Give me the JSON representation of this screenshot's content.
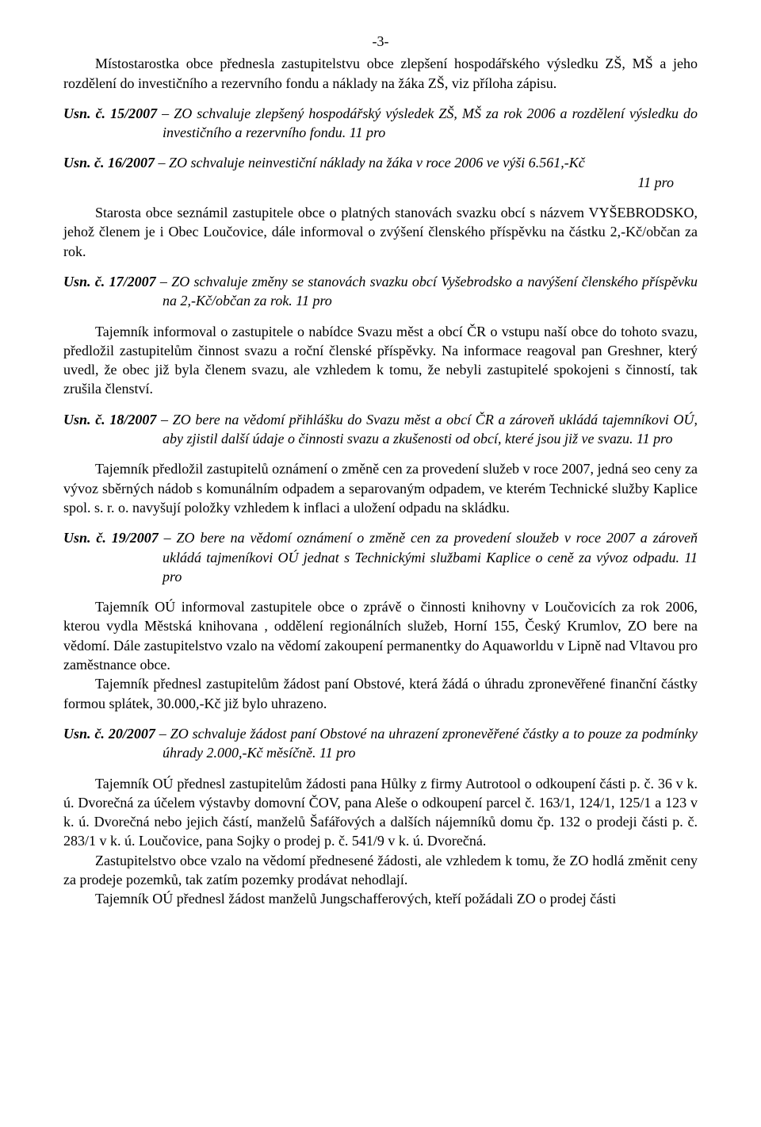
{
  "page_number": "-3-",
  "para1": "Místostarostka obce přednesla zastupitelstvu obce zlepšení hospodářského výsledku ZŠ, MŠ a jeho rozdělení do investičního a rezervního fondu a náklady na žáka ZŠ, viz příloha zápisu.",
  "res15_label": "Usn. č. 15/2007",
  "res15_body": " – ZO schvaluje zlepšený hospodářský výsledek ZŠ, MŠ za rok 2006 a rozdělení výsledku do investičního a rezervního fondu.                                                   11 pro",
  "res16_label": "Usn. č. 16/2007",
  "res16_body": " – ZO schvaluje neinvestiční náklady na žáka v roce 2006 ve výši 6.561,-Kč",
  "res16_tag": "11 pro",
  "para2": "Starosta obce seznámil zastupitele obce o platných stanovách svazku obcí s názvem VYŠEBRODSKO, jehož členem je i Obec Loučovice, dále informoval o zvýšení členského příspěvku na částku 2,-Kč/občan za rok.",
  "res17_label": "Usn. č. 17/2007",
  "res17_body": " – ZO schvaluje změny se stanovách svazku obcí Vyšebrodsko a navýšení členského příspěvku na 2,-Kč/občan za rok.                                                                 11 pro",
  "para3": "Tajemník informoval o zastupitele o nabídce  Svazu měst a obcí ČR o vstupu naší obce do tohoto svazu, předložil zastupitelům činnost svazu a roční členské příspěvky. Na informace reagoval pan Greshner, který uvedl, že obec již byla členem svazu, ale vzhledem k tomu, že nebyli zastupitelé spokojeni s činností, tak zrušila členství.",
  "res18_label": "Usn. č. 18/2007",
  "res18_body": " – ZO bere na vědomí přihlášku do Svazu měst a obcí ČR a zároveň ukládá tajemníkovi OÚ, aby zjistil další údaje o činnosti svazu a zkušenosti od obcí, které jsou již ve svazu.                                                                                        11 pro",
  "para4": "Tajemník předložil zastupitelů oznámení o změně cen za provedení služeb v roce 2007, jedná seo ceny za vývoz sběrných nádob s komunálním odpadem a separovaným odpadem, ve kterém Technické služby Kaplice spol. s. r. o. navyšují položky vzhledem k inflaci a uložení odpadu na skládku.",
  "res19_label": "Usn. č. 19/2007",
  "res19_body": " – ZO bere na vědomí oznámení o změně cen za provedení sloužeb v roce 2007 a zároveň ukládá tajmeníkovi OÚ jednat s Technickými službami Kaplice o ceně za vývoz odpadu.                                                                                              11 pro",
  "para5a": "Tajemník OÚ informoval zastupitele obce o zprávě o činnosti knihovny v Loučovicích za rok 2006, kterou vydla Městská knihovana , oddělení regionálních služeb, Horní 155, Český Krumlov, ZO bere na vědomí. Dále zastupitelstvo vzalo na vědomí zakoupení permanentky do Aquaworldu v Lipně nad Vltavou  pro zaměstnance obce.",
  "para5b": "Tajemník přednesl zastupitelům žádost paní Obstové, která žádá o úhradu zpronevěřené finanční částky formou splátek, 30.000,-Kč již bylo uhrazeno.",
  "res20_label": "Usn. č. 20/2007",
  "res20_body": " – ZO schvaluje žádost paní Obstové na uhrazení zpronevěřené částky a to pouze za podmínky úhrady 2.000,-Kč měsíčně.                                                              11 pro",
  "para6a": "Tajemník OÚ přednesl zastupitelům žádosti pana Hůlky z firmy Autrotool o odkoupení části p. č. 36 v k. ú. Dvorečná za účelem výstavby domovní ČOV, pana Aleše o odkoupení parcel č. 163/1, 124/1, 125/1 a 123 v k. ú. Dvorečná nebo jejich částí, manželů Šafářových a dalších nájemníků domu čp. 132 o prodeji části  p. č. 283/1 v k. ú. Loučovice, pana Sojky o prodej p. č. 541/9 v k. ú. Dvorečná.",
  "para6b": "Zastupitelstvo obce vzalo na vědomí přednesené žádosti, ale vzhledem k tomu, že ZO hodlá změnit ceny za prodeje pozemků, tak zatím pozemky prodávat nehodlají.",
  "para6c": "Tajemník OÚ přednesl žádost manželů Jungschafferových, kteří požádali ZO o prodej části"
}
